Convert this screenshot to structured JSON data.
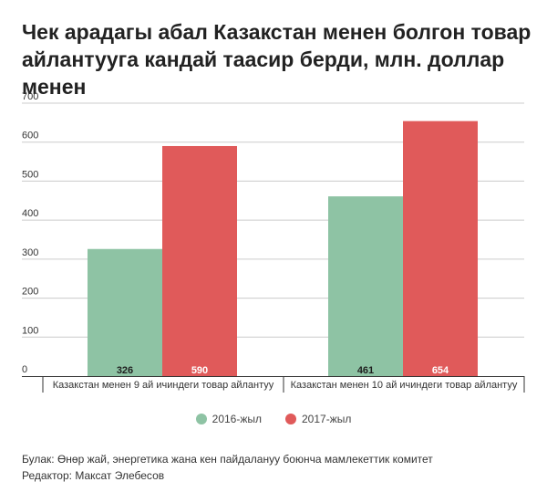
{
  "chart_data": {
    "type": "bar",
    "title": "Чек арадагы абал Казакстан менен болгон товар айлантууга кандай таасир берди, млн. доллар менен",
    "categories": [
      "Казакстан менен 9 ай ичиндеги товар айлантуу",
      "Казакстан менен 10 ай ичиндеги товар айлантуу"
    ],
    "series": [
      {
        "name": "2016-жыл",
        "values": [
          326,
          461
        ],
        "color": "#8ec3a4"
      },
      {
        "name": "2017-жыл",
        "values": [
          590,
          654
        ],
        "color": "#e05a5a"
      }
    ],
    "ylim": [
      0,
      700
    ],
    "yticks": [
      0,
      100,
      200,
      300,
      400,
      500,
      600,
      700
    ],
    "grid": true,
    "legend": "bottom"
  },
  "footer": {
    "source": "Булак: Өнөр жай, энергетика жана кен пайдалануу боюнча мамлекеттик комитет",
    "editor": "Редактор: Максат Элебесов"
  }
}
